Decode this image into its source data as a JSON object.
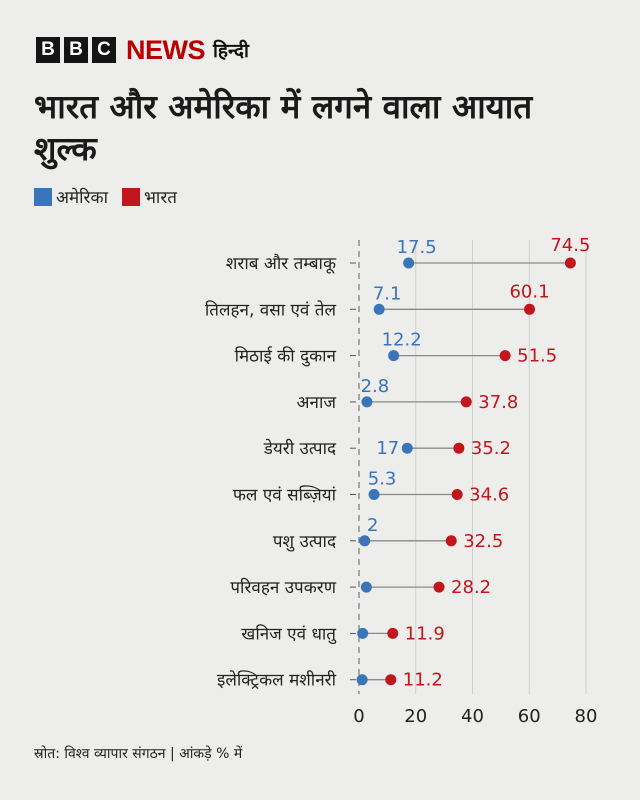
{
  "brand": {
    "letters": [
      "B",
      "B",
      "C"
    ],
    "news": "NEWS",
    "lang": "हिन्दी"
  },
  "title": "भारत और अमेरिका में लगने वाला आयात शुल्क",
  "source": "स्रोत: विश्व व्यापार संगठन | आंकड़े % में",
  "chart_data": {
    "type": "dumbbell",
    "categories": [
      "शराब और तम्बाकू",
      "तिलहन, वसा एवं तेल",
      "मिठाई की दुकान",
      "अनाज",
      "डेयरी उत्पाद",
      "फल एवं सब्ज़ियां",
      "पशु उत्पाद",
      "परिवहन उपकरण",
      "खनिज एवं धातु",
      "इलेक्ट्रिकल मशीनरी"
    ],
    "series": [
      {
        "name": "अमेरिका",
        "color": "#3a74b9",
        "values": [
          17.5,
          7.1,
          12.2,
          2.8,
          17,
          5.3,
          2,
          2.6,
          1.3,
          1.1
        ],
        "labels": [
          "17.5",
          "7.1",
          "12.2",
          "2.8",
          "17",
          "5.3",
          "2",
          "",
          "",
          ""
        ]
      },
      {
        "name": "भारत",
        "color": "#c1161b",
        "values": [
          74.5,
          60.1,
          51.5,
          37.8,
          35.2,
          34.6,
          32.5,
          28.2,
          11.9,
          11.2
        ],
        "labels": [
          "74.5",
          "60.1",
          "51.5",
          "37.8",
          "35.2",
          "34.6",
          "32.5",
          "28.2",
          "11.9",
          "11.2"
        ]
      }
    ],
    "xlim": [
      0,
      80
    ],
    "xticks": [
      0,
      20,
      40,
      60,
      80
    ],
    "grid": true,
    "legend": "top-left"
  }
}
